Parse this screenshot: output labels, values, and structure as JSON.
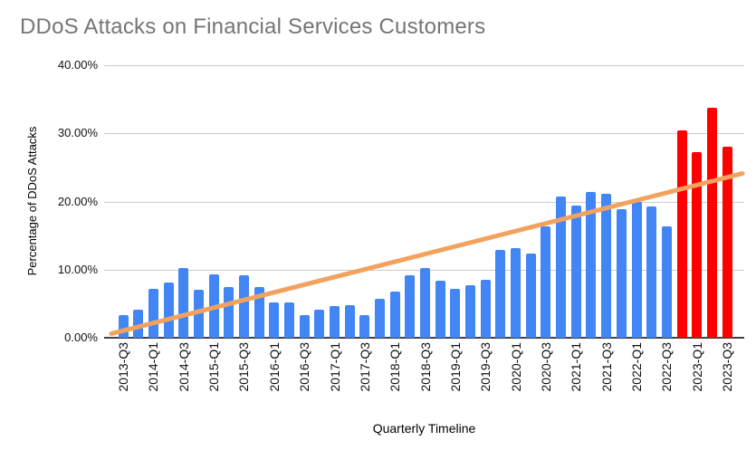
{
  "chart_data": {
    "type": "bar",
    "title": "DDoS Attacks on Financial Services Customers",
    "xlabel": "Quarterly Timeline",
    "ylabel": "Percentage of DDoS Attacks",
    "ylim": [
      0,
      40
    ],
    "ytick_values": [
      0,
      10,
      20,
      30,
      40
    ],
    "ytick_labels": [
      "0.00%",
      "10.00%",
      "20.00%",
      "30.00%",
      "40.00%"
    ],
    "xtick_label_every": 2,
    "grid": true,
    "legend": false,
    "categories": [
      "2013-Q3",
      "2013-Q4",
      "2014-Q1",
      "2014-Q2",
      "2014-Q3",
      "2014-Q4",
      "2015-Q1",
      "2015-Q2",
      "2015-Q3",
      "2015-Q4",
      "2016-Q1",
      "2016-Q2",
      "2016-Q3",
      "2016-Q4",
      "2017-Q1",
      "2017-Q2",
      "2017-Q3",
      "2017-Q4",
      "2018-Q1",
      "2018-Q2",
      "2018-Q3",
      "2018-Q4",
      "2019-Q1",
      "2019-Q2",
      "2019-Q3",
      "2019-Q4",
      "2020-Q1",
      "2020-Q2",
      "2020-Q3",
      "2020-Q4",
      "2021-Q1",
      "2021-Q2",
      "2021-Q3",
      "2021-Q4",
      "2022-Q1",
      "2022-Q2",
      "2022-Q3",
      "2022-Q4",
      "2023-Q1",
      "2023-Q2",
      "2023-Q3"
    ],
    "values": [
      3.3,
      4.1,
      7.2,
      8.1,
      10.3,
      7.1,
      9.3,
      7.5,
      9.2,
      7.5,
      5.2,
      5.2,
      3.3,
      4.1,
      4.6,
      4.8,
      3.3,
      5.7,
      6.8,
      9.2,
      10.2,
      8.4,
      7.2,
      7.7,
      8.5,
      12.9,
      13.2,
      12.3,
      16.4,
      20.8,
      19.4,
      21.4,
      21.1,
      18.9,
      20.0,
      19.3,
      16.3,
      30.4,
      27.2,
      33.7,
      28.0
    ],
    "highlight_from_index": 37,
    "trendline": {
      "start_value": 0.6,
      "end_value": 24.1
    },
    "colors": {
      "bar_default": "#4285F4",
      "bar_highlight": "#FF0000",
      "trendline": "#F2A25F",
      "title_text": "#757575",
      "axis_text": "#111111",
      "gridline": "#CCCCCC",
      "baseline": "#424242"
    }
  }
}
